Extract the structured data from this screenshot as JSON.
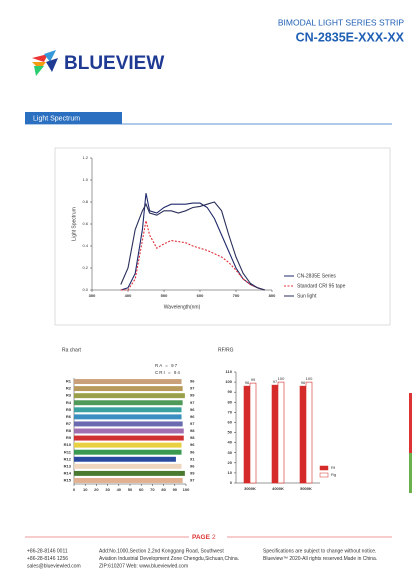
{
  "header": {
    "brand": "BLUEVIEW",
    "series": "BIMODAL LIGHT SERIES STRIP",
    "model": "CN-2835E-XXX-XX"
  },
  "section": "Light Spectrum",
  "chart_data": [
    {
      "type": "line",
      "ylabel": "Light Spectrum",
      "xlabel": "Wavelength(nm)",
      "x": [
        380,
        400,
        420,
        440,
        450,
        460,
        480,
        500,
        520,
        540,
        560,
        580,
        600,
        620,
        640,
        660,
        680,
        700,
        720,
        740,
        760,
        780
      ],
      "series": [
        {
          "name": "CN-2835E Series",
          "color": "#1f2a6b",
          "dash": false,
          "values": [
            0,
            0.02,
            0.15,
            0.55,
            0.88,
            0.72,
            0.7,
            0.75,
            0.78,
            0.78,
            0.78,
            0.79,
            0.79,
            0.75,
            0.65,
            0.5,
            0.35,
            0.2,
            0.1,
            0.05,
            0.02,
            0
          ]
        },
        {
          "name": "Standard CRI 95 tape",
          "color": "#e0303a",
          "dash": true,
          "values": [
            0,
            0,
            0.1,
            0.45,
            0.63,
            0.5,
            0.38,
            0.42,
            0.45,
            0.44,
            0.43,
            0.4,
            0.38,
            0.36,
            0.33,
            0.3,
            0.25,
            0.18,
            0.1,
            0.05,
            0.02,
            0
          ]
        },
        {
          "name": "Sun light",
          "color": "#2a2f5a",
          "dash": false,
          "values": [
            0.05,
            0.2,
            0.55,
            0.72,
            0.78,
            0.7,
            0.68,
            0.72,
            0.72,
            0.7,
            0.72,
            0.75,
            0.76,
            0.78,
            0.8,
            0.72,
            0.5,
            0.3,
            0.15,
            0.06,
            0.02,
            0
          ]
        }
      ],
      "xlim": [
        300,
        800
      ],
      "xticks": [
        300,
        400,
        500,
        600,
        700,
        800
      ],
      "ylim": [
        0,
        1.2
      ],
      "yticks": [
        {
          "value": 0,
          "label": "0.0"
        },
        0.2,
        0.4,
        0.6,
        0.8,
        {
          "value": 1,
          "label": "1.0"
        },
        1.2
      ]
    },
    {
      "type": "barh",
      "title": "Ra chart",
      "annotations": [
        "RA = 97",
        "CRI = 94"
      ],
      "categories": [
        "R1",
        "R2",
        "R3",
        "R4",
        "R5",
        "R6",
        "R7",
        "R8",
        "R9",
        "R10",
        "R11",
        "R12",
        "R13",
        "R14",
        "R15"
      ],
      "values": [
        96,
        97,
        99,
        97,
        96,
        96,
        97,
        98,
        98,
        96,
        96,
        91,
        96,
        99,
        97
      ],
      "colors": [
        "#c9a07a",
        "#b89a5c",
        "#9aa04a",
        "#4f9a5a",
        "#3aa0a0",
        "#3a8ec0",
        "#6a6ab0",
        "#a070b0",
        "#d03030",
        "#e8d040",
        "#3a9a50",
        "#2a4aa0",
        "#f0d8c0",
        "#4a7a30",
        "#e0b090"
      ],
      "xlim": [
        0,
        100
      ],
      "xticks": [
        0,
        10,
        20,
        30,
        40,
        50,
        60,
        70,
        80,
        90,
        100
      ]
    },
    {
      "type": "bar",
      "title": "RF/RG",
      "categories": [
        "3000K",
        "4000K",
        "5000K"
      ],
      "series": [
        {
          "name": "Rf",
          "color": "#d42a2a",
          "values": [
            96,
            97,
            96
          ]
        },
        {
          "name": "Rg",
          "color": "#ffffff",
          "values": [
            99,
            100,
            100
          ]
        }
      ],
      "ylim": [
        0,
        110
      ],
      "yticks": [
        0,
        10,
        20,
        30,
        40,
        50,
        60,
        70,
        80,
        90,
        100,
        110
      ]
    }
  ],
  "footer": {
    "page": "PAGE",
    "page_number": "2",
    "contact": [
      "+86-28-8146 0011",
      "+86-28-8146 1256",
      "sales@blueviewled.com"
    ],
    "address": [
      "Add:No.1000,Section 2,2nd Konggang Road, Southwest",
      "Aviation Industrial Development Zone Chengdu,Sichuan,China.",
      "ZIP:610207    Web: www.blueviewled.com"
    ],
    "notice": [
      "Specifications are subject to change without notice.",
      "Blueview™ 2020-All rights reserved.Made in China."
    ]
  }
}
